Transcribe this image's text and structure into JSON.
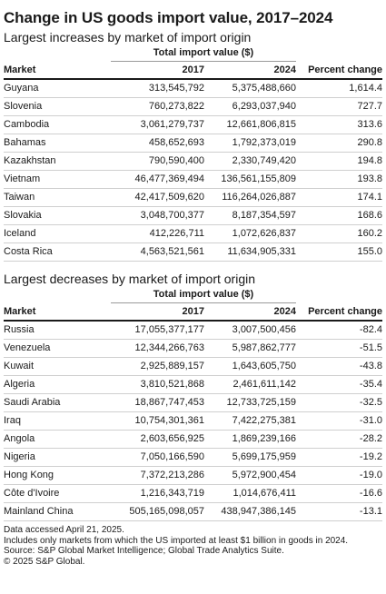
{
  "title": "Change in US goods import value, 2017–2024",
  "increases": {
    "subtitle": "Largest increases by market of import origin",
    "group_header": "Total import value ($)",
    "columns": [
      "Market",
      "2017",
      "2024",
      "Percent change"
    ],
    "rows": [
      [
        "Guyana",
        "313,545,792",
        "5,375,488,660",
        "1,614.4"
      ],
      [
        "Slovenia",
        "760,273,822",
        "6,293,037,940",
        "727.7"
      ],
      [
        "Cambodia",
        "3,061,279,737",
        "12,661,806,815",
        "313.6"
      ],
      [
        "Bahamas",
        "458,652,693",
        "1,792,373,019",
        "290.8"
      ],
      [
        "Kazakhstan",
        "790,590,400",
        "2,330,749,420",
        "194.8"
      ],
      [
        "Vietnam",
        "46,477,369,494",
        "136,561,155,809",
        "193.8"
      ],
      [
        "Taiwan",
        "42,417,509,620",
        "116,264,026,887",
        "174.1"
      ],
      [
        "Slovakia",
        "3,048,700,377",
        "8,187,354,597",
        "168.6"
      ],
      [
        "Iceland",
        "412,226,711",
        "1,072,626,837",
        "160.2"
      ],
      [
        "Costa Rica",
        "4,563,521,561",
        "11,634,905,331",
        "155.0"
      ]
    ]
  },
  "decreases": {
    "subtitle": "Largest decreases by market of import origin",
    "group_header": "Total import value ($)",
    "columns": [
      "Market",
      "2017",
      "2024",
      "Percent change"
    ],
    "rows": [
      [
        "Russia",
        "17,055,377,177",
        "3,007,500,456",
        "-82.4"
      ],
      [
        "Venezuela",
        "12,344,266,763",
        "5,987,862,777",
        "-51.5"
      ],
      [
        "Kuwait",
        "2,925,889,157",
        "1,643,605,750",
        "-43.8"
      ],
      [
        "Algeria",
        "3,810,521,868",
        "2,461,611,142",
        "-35.4"
      ],
      [
        "Saudi Arabia",
        "18,867,747,453",
        "12,733,725,159",
        "-32.5"
      ],
      [
        "Iraq",
        "10,754,301,361",
        "7,422,275,381",
        "-31.0"
      ],
      [
        "Angola",
        "2,603,656,925",
        "1,869,239,166",
        "-28.2"
      ],
      [
        "Nigeria",
        "7,050,166,590",
        "5,699,175,959",
        "-19.2"
      ],
      [
        "Hong Kong",
        "7,372,213,286",
        "5,972,900,454",
        "-19.0"
      ],
      [
        "Côte d'Ivoire",
        "1,216,343,719",
        "1,014,676,411",
        "-16.6"
      ],
      [
        "Mainland China",
        "505,165,098,057",
        "438,947,386,145",
        "-13.1"
      ]
    ]
  },
  "notes": [
    "Data accessed April 21, 2025.",
    "Includes only markets from which the US imported at least $1 billion in goods in 2024.",
    "Source: S&P Global Market Intelligence; Global Trade Analytics Suite.",
    "© 2025 S&P Global."
  ]
}
